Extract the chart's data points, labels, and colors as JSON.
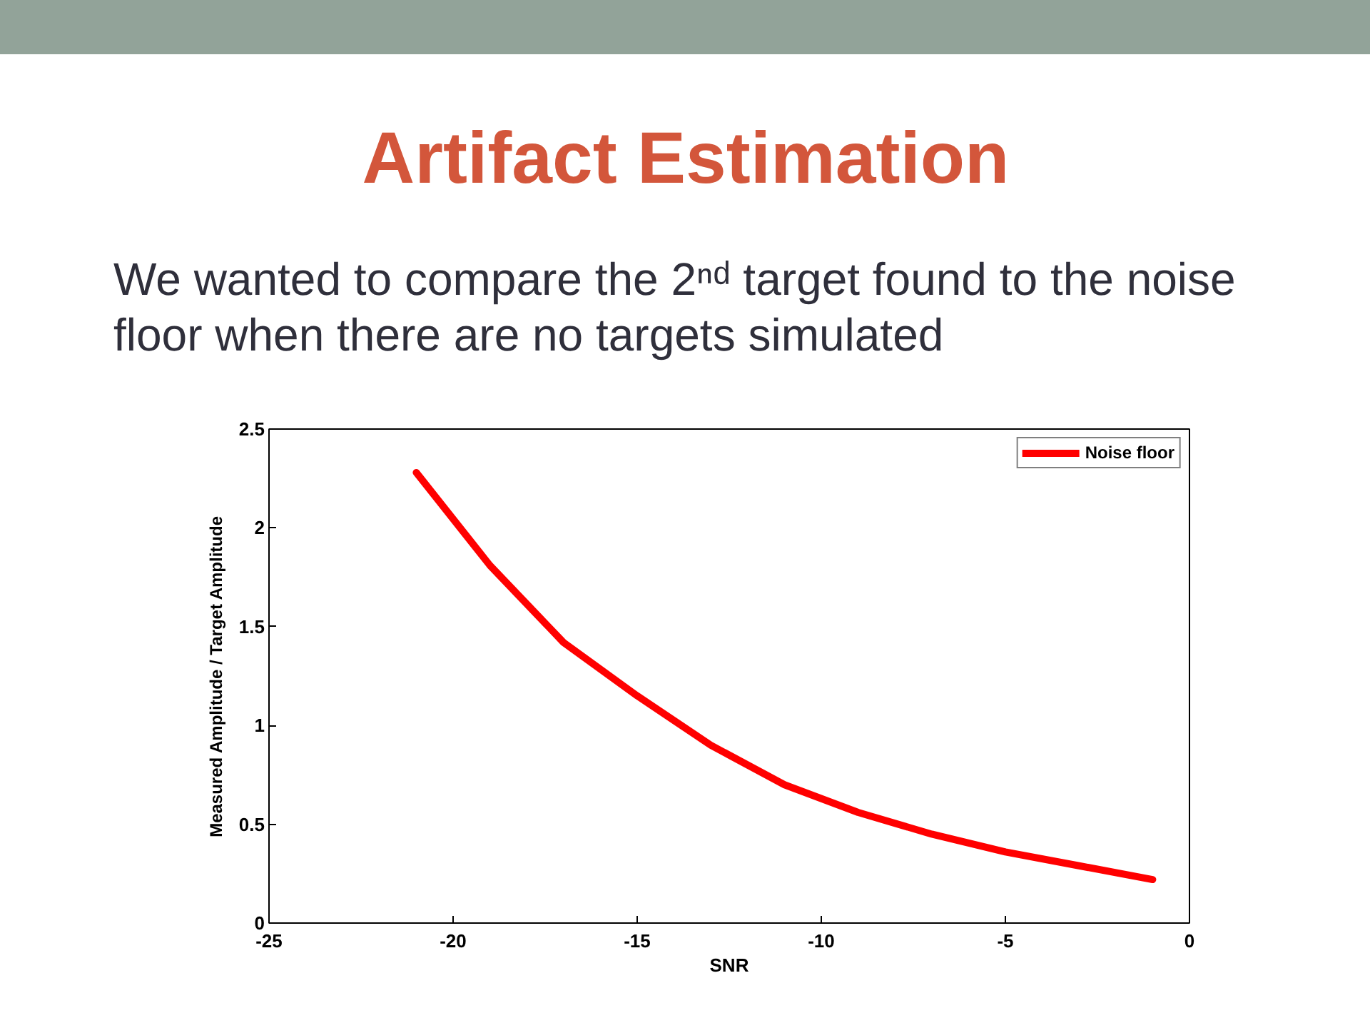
{
  "chart_data": {
    "type": "line",
    "title": "Artifact Estimation",
    "subtitle": "We wanted to compare the 2ⁿᵈ target found to the noise floor when there are no targets simulated",
    "xlabel": "SNR",
    "ylabel": "Measured Amplitude / Target Amplitude",
    "x": [
      -21,
      -19,
      -17,
      -15,
      -13,
      -11,
      -9,
      -7,
      -5,
      -3,
      -1
    ],
    "series": [
      {
        "name": "Noise floor",
        "color": "#ff0000",
        "values": [
          2.28,
          1.81,
          1.42,
          1.15,
          0.9,
          0.7,
          0.56,
          0.45,
          0.36,
          0.29,
          0.22
        ]
      }
    ],
    "xlim": [
      -25,
      0
    ],
    "ylim": [
      0,
      2.5
    ],
    "xticks": [
      -25,
      -20,
      -15,
      -10,
      -5,
      0
    ],
    "yticks": [
      0,
      0.5,
      1,
      1.5,
      2,
      2.5
    ],
    "grid": false,
    "legend": "top right",
    "marker": "none",
    "line_style": "solid"
  }
}
